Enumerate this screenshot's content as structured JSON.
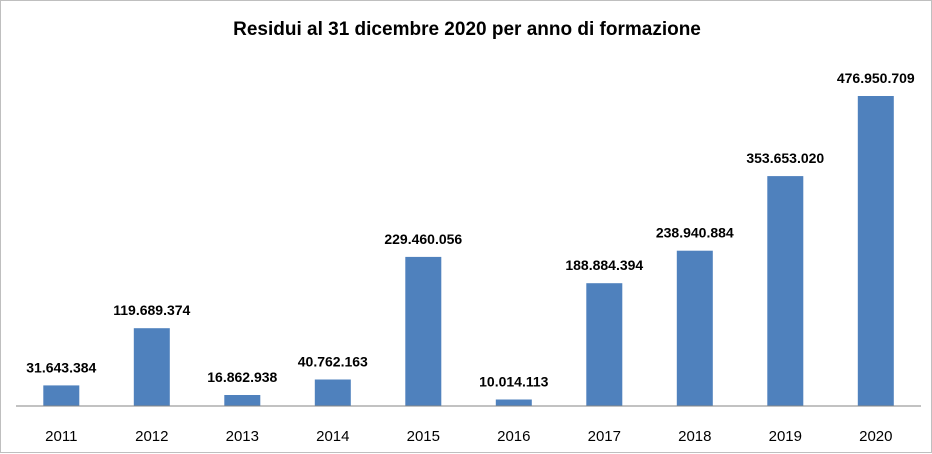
{
  "chart_data": {
    "type": "bar",
    "title": "Residui al 31 dicembre 2020 per anno di formazione",
    "xlabel": "",
    "ylabel": "",
    "categories": [
      "2011",
      "2012",
      "2013",
      "2014",
      "2015",
      "2016",
      "2017",
      "2018",
      "2019",
      "2020"
    ],
    "values": [
      31643384,
      119689374,
      16862938,
      40762163,
      229460056,
      10014113,
      188884394,
      238940884,
      353653020,
      476950709
    ],
    "data_labels": [
      "31.643.384",
      "119.689.374",
      "16.862.938",
      "40.762.163",
      "229.460.056",
      "10.014.113",
      "188.884.394",
      "238.940.884",
      "353.653.020",
      "476.950.709"
    ],
    "ylim": [
      0,
      500000000
    ],
    "grid": false,
    "legend": "none",
    "bar_color": "#4f81bd"
  }
}
